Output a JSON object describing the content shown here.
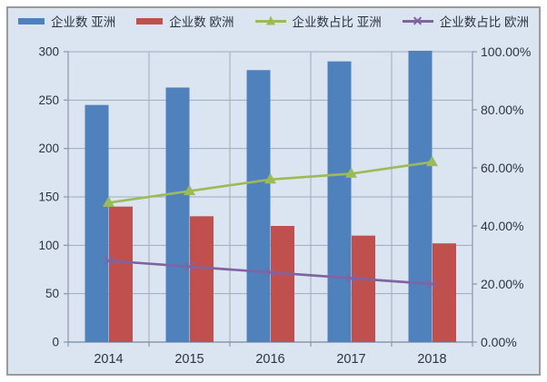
{
  "colors": {
    "asia_bar": "#4f81bd",
    "europe_bar": "#c0504d",
    "asia_line": "#9bbb59",
    "europe_line": "#8064a2",
    "chart_bg": "#dbe5f1",
    "frame_border": "#9a9a9a",
    "gridline": "#9dabc0",
    "axis_line": "#8798ad",
    "text": "#2b333f"
  },
  "chart_data": {
    "type": "combo-bar-line",
    "title": "",
    "categories": [
      "2014",
      "2015",
      "2016",
      "2017",
      "2018"
    ],
    "series": [
      {
        "id": "asia-count",
        "name": "企业数 亚洲",
        "type": "bar",
        "axis": "left",
        "color_key": "asia_bar",
        "values": [
          245,
          263,
          281,
          290,
          301
        ]
      },
      {
        "id": "europe-count",
        "name": "企业数 欧洲",
        "type": "bar",
        "axis": "left",
        "color_key": "europe_bar",
        "values": [
          140,
          130,
          120,
          110,
          102
        ]
      },
      {
        "id": "asia-share",
        "name": "企业数占比 亚洲",
        "type": "line",
        "marker": "triangle",
        "axis": "right",
        "color_key": "asia_line",
        "values": [
          48,
          52,
          56,
          58,
          62
        ],
        "unit": "%"
      },
      {
        "id": "europe-share",
        "name": "企业数占比 欧洲",
        "type": "line",
        "marker": "x",
        "axis": "right",
        "color_key": "europe_line",
        "values": [
          28,
          26,
          24,
          22,
          20
        ],
        "unit": "%"
      }
    ],
    "left_axis": {
      "min": 0,
      "max": 300,
      "step": 50,
      "tick_labels": [
        "0",
        "50",
        "100",
        "150",
        "200",
        "250",
        "300"
      ]
    },
    "right_axis": {
      "min": 0,
      "max": 100,
      "step": 20,
      "tick_labels": [
        "0.00%",
        "20.00%",
        "40.00%",
        "60.00%",
        "80.00%",
        "100.00%"
      ]
    },
    "grid": {
      "horizontal": true,
      "vertical": true
    },
    "legend_position": "top"
  }
}
